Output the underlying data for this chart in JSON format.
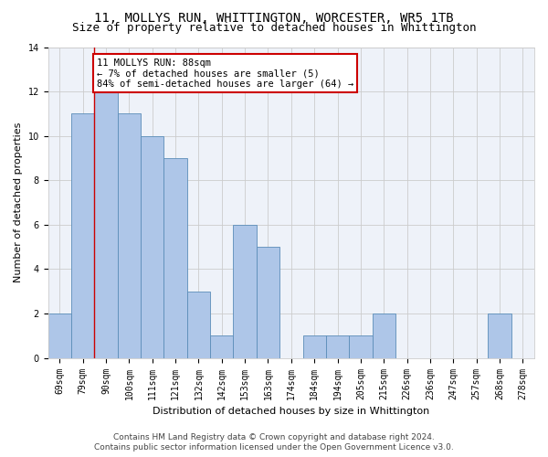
{
  "title": "11, MOLLYS RUN, WHITTINGTON, WORCESTER, WR5 1TB",
  "subtitle": "Size of property relative to detached houses in Whittington",
  "xlabel": "Distribution of detached houses by size in Whittington",
  "ylabel": "Number of detached properties",
  "categories": [
    "69sqm",
    "79sqm",
    "90sqm",
    "100sqm",
    "111sqm",
    "121sqm",
    "132sqm",
    "142sqm",
    "153sqm",
    "163sqm",
    "174sqm",
    "184sqm",
    "194sqm",
    "205sqm",
    "215sqm",
    "226sqm",
    "236sqm",
    "247sqm",
    "257sqm",
    "268sqm",
    "278sqm"
  ],
  "values": [
    2,
    11,
    12,
    11,
    10,
    9,
    3,
    1,
    6,
    5,
    0,
    1,
    1,
    1,
    2,
    0,
    0,
    0,
    0,
    2,
    0
  ],
  "bar_color": "#aec6e8",
  "bar_edge_color": "#5b8db8",
  "annotation_text": "11 MOLLYS RUN: 88sqm\n← 7% of detached houses are smaller (5)\n84% of semi-detached houses are larger (64) →",
  "annotation_box_color": "#ffffff",
  "annotation_box_edge_color": "#cc0000",
  "red_line_x": 1.5,
  "ylim": [
    0,
    14
  ],
  "yticks": [
    0,
    2,
    4,
    6,
    8,
    10,
    12,
    14
  ],
  "grid_color": "#cccccc",
  "background_color": "#eef2f9",
  "footer_line1": "Contains HM Land Registry data © Crown copyright and database right 2024.",
  "footer_line2": "Contains public sector information licensed under the Open Government Licence v3.0.",
  "title_fontsize": 10,
  "subtitle_fontsize": 9,
  "axis_label_fontsize": 8,
  "tick_fontsize": 7,
  "annotation_fontsize": 7.5,
  "footer_fontsize": 6.5
}
